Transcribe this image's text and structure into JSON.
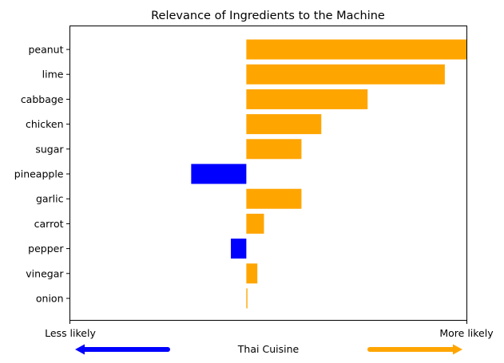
{
  "chart_data": {
    "type": "bar",
    "orientation": "horizontal",
    "title": "Relevance of Ingredients to the Machine",
    "categories": [
      "peanut",
      "lime",
      "cabbage",
      "chicken",
      "sugar",
      "pineapple",
      "garlic",
      "carrot",
      "pepper",
      "vinegar",
      "onion"
    ],
    "values": [
      1.0,
      0.9,
      0.55,
      0.34,
      0.25,
      -0.25,
      0.25,
      0.08,
      -0.07,
      0.05,
      0.005
    ],
    "xlim": [
      -0.8,
      1.0
    ],
    "positive_color": "#FFA500",
    "negative_color": "#0000FF",
    "grid": false,
    "x_left_label": "Less likely",
    "x_right_label": "More likely",
    "bottom_label": "Thai Cuisine",
    "left_arrow_color": "#0000FF",
    "right_arrow_color": "#FFA500"
  }
}
